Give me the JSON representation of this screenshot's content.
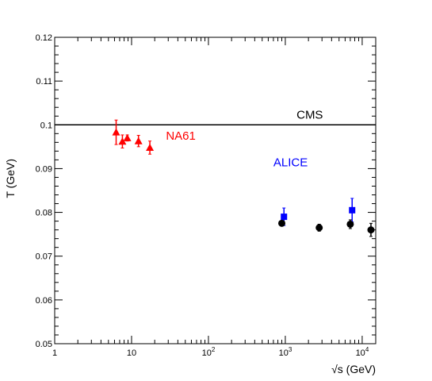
{
  "chart_data": {
    "type": "scatter",
    "title": "",
    "xlabel": "√s (GeV)",
    "ylabel": "T (GeV)",
    "x_scale": "log",
    "xlim": [
      1,
      15000
    ],
    "ylim": [
      0.05,
      0.12
    ],
    "x_ticks": [
      {
        "value": 1,
        "label": "1"
      },
      {
        "value": 10,
        "label": "10"
      },
      {
        "value": 100,
        "label": "10",
        "exp": "2"
      },
      {
        "value": 1000,
        "label": "10",
        "exp": "3"
      },
      {
        "value": 10000,
        "label": "10",
        "exp": "4"
      }
    ],
    "y_ticks": [
      {
        "value": 0.05,
        "label": "0.05"
      },
      {
        "value": 0.06,
        "label": "0.06"
      },
      {
        "value": 0.07,
        "label": "0.07"
      },
      {
        "value": 0.08,
        "label": "0.08"
      },
      {
        "value": 0.09,
        "label": "0.09"
      },
      {
        "value": 0.1,
        "label": "0.1"
      },
      {
        "value": 0.11,
        "label": "0.11"
      },
      {
        "value": 0.12,
        "label": "0.12"
      }
    ],
    "grid": false,
    "reference_lines": [
      {
        "name": "CMS",
        "y": 0.1,
        "color": "#000000"
      }
    ],
    "series": [
      {
        "name": "NA61",
        "color": "#ff0000",
        "marker": "triangle",
        "points": [
          {
            "x": 6.3,
            "y": 0.0983,
            "err": 0.0028
          },
          {
            "x": 7.6,
            "y": 0.0962,
            "err": 0.0015
          },
          {
            "x": 8.8,
            "y": 0.097,
            "err": 0.0007
          },
          {
            "x": 12.3,
            "y": 0.0963,
            "err": 0.0013
          },
          {
            "x": 17.3,
            "y": 0.0948,
            "err": 0.0015
          }
        ]
      },
      {
        "name": "ALICE",
        "color": "#0000ff",
        "marker": "square",
        "points": [
          {
            "x": 960,
            "y": 0.079,
            "err": 0.002
          },
          {
            "x": 7400,
            "y": 0.0805,
            "err": 0.0027
          }
        ]
      },
      {
        "name": "",
        "color": "#000000",
        "marker": "circle",
        "points": [
          {
            "x": 900,
            "y": 0.0775,
            "err": 0.0004
          },
          {
            "x": 2760,
            "y": 0.0765,
            "err": 0.0008
          },
          {
            "x": 7000,
            "y": 0.0773,
            "err": 0.001
          },
          {
            "x": 13000,
            "y": 0.076,
            "err": 0.0015
          }
        ]
      }
    ],
    "annotations": [
      {
        "text": "CMS",
        "color": "#000000",
        "x": 1400,
        "y": 0.1014
      },
      {
        "text": "NA61",
        "color": "#ff0000",
        "x": 28,
        "y": 0.0966
      },
      {
        "text": "ALICE",
        "color": "#0000ff",
        "x": 700,
        "y": 0.0905
      }
    ]
  }
}
